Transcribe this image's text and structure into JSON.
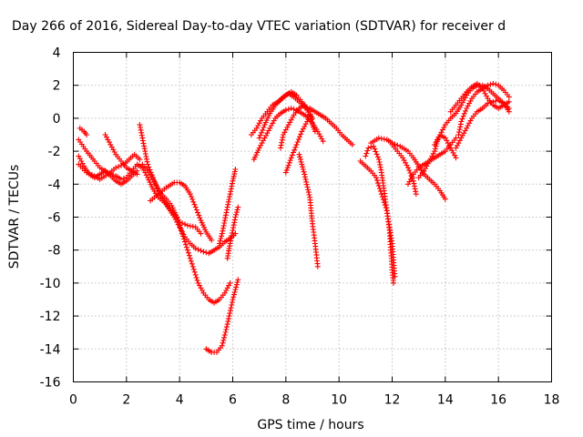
{
  "chart_data": {
    "type": "scatter",
    "title": "Day 266 of 2016, Sidereal Day-to-day VTEC variation (SDTVAR) for receiver d",
    "xlabel": "GPS time / hours",
    "ylabel": "SDTVAR / TECUs",
    "xlim": [
      0,
      18
    ],
    "ylim": [
      -16,
      4
    ],
    "xticks": [
      0,
      2,
      4,
      6,
      8,
      10,
      12,
      14,
      16,
      18
    ],
    "yticks": [
      4,
      2,
      0,
      -2,
      -4,
      -6,
      -8,
      -10,
      -12,
      -14,
      -16
    ],
    "grid": true,
    "marker": "plus",
    "color": "#ff0000",
    "series": [
      {
        "points": [
          [
            0.25,
            -0.6
          ],
          [
            0.4,
            -0.8
          ],
          [
            0.5,
            -1.0
          ]
        ]
      },
      {
        "points": [
          [
            0.2,
            -1.3
          ],
          [
            0.5,
            -2.0
          ],
          [
            0.8,
            -2.6
          ],
          [
            1.0,
            -3.0
          ],
          [
            1.3,
            -3.3
          ],
          [
            1.6,
            -3.5
          ],
          [
            1.8,
            -3.7
          ],
          [
            2.0,
            -3.6
          ],
          [
            2.2,
            -3.2
          ],
          [
            2.4,
            -2.8
          ],
          [
            2.6,
            -3.0
          ],
          [
            2.8,
            -3.6
          ],
          [
            3.0,
            -4.3
          ],
          [
            3.2,
            -4.8
          ],
          [
            3.5,
            -5.2
          ],
          [
            3.8,
            -5.8
          ],
          [
            4.0,
            -6.3
          ],
          [
            4.3,
            -6.5
          ],
          [
            4.6,
            -6.6
          ],
          [
            4.8,
            -7.0
          ]
        ]
      },
      {
        "points": [
          [
            0.2,
            -2.3
          ],
          [
            0.4,
            -2.9
          ],
          [
            0.6,
            -3.4
          ],
          [
            0.8,
            -3.6
          ],
          [
            1.0,
            -3.4
          ],
          [
            1.2,
            -3.2
          ],
          [
            1.4,
            -3.5
          ],
          [
            1.6,
            -3.8
          ],
          [
            1.8,
            -4.0
          ],
          [
            2.0,
            -3.8
          ],
          [
            2.2,
            -3.5
          ],
          [
            2.4,
            -3.2
          ]
        ]
      },
      {
        "points": [
          [
            0.2,
            -2.8
          ],
          [
            0.5,
            -3.3
          ],
          [
            0.8,
            -3.5
          ],
          [
            1.0,
            -3.7
          ],
          [
            1.3,
            -3.4
          ],
          [
            1.6,
            -3.0
          ],
          [
            1.9,
            -2.8
          ],
          [
            2.1,
            -2.5
          ],
          [
            2.3,
            -2.2
          ],
          [
            2.5,
            -2.5
          ]
        ]
      },
      {
        "points": [
          [
            1.2,
            -1.0
          ],
          [
            1.4,
            -1.6
          ],
          [
            1.6,
            -2.2
          ],
          [
            1.8,
            -2.6
          ],
          [
            2.0,
            -3.0
          ],
          [
            2.2,
            -3.2
          ],
          [
            2.4,
            -3.4
          ]
        ]
      },
      {
        "points": [
          [
            2.5,
            -0.4
          ],
          [
            2.6,
            -1.2
          ],
          [
            2.7,
            -2.0
          ],
          [
            2.8,
            -2.8
          ],
          [
            3.0,
            -3.6
          ],
          [
            3.2,
            -4.4
          ],
          [
            3.4,
            -5.0
          ],
          [
            3.6,
            -5.5
          ],
          [
            3.8,
            -6.0
          ],
          [
            4.0,
            -6.6
          ],
          [
            4.2,
            -7.2
          ],
          [
            4.4,
            -7.6
          ],
          [
            4.6,
            -7.9
          ],
          [
            4.9,
            -8.1
          ],
          [
            5.1,
            -8.2
          ],
          [
            5.3,
            -8.0
          ],
          [
            5.5,
            -7.8
          ],
          [
            5.7,
            -7.5
          ],
          [
            5.9,
            -7.3
          ],
          [
            6.1,
            -7.0
          ]
        ]
      },
      {
        "points": [
          [
            2.6,
            -2.8
          ],
          [
            2.9,
            -3.4
          ],
          [
            3.1,
            -4.0
          ],
          [
            3.3,
            -4.6
          ],
          [
            3.5,
            -4.9
          ],
          [
            3.7,
            -5.3
          ],
          [
            3.9,
            -6.0
          ],
          [
            4.1,
            -7.0
          ],
          [
            4.3,
            -8.0
          ],
          [
            4.5,
            -9.0
          ],
          [
            4.7,
            -10.0
          ],
          [
            4.9,
            -10.6
          ],
          [
            5.1,
            -11.0
          ],
          [
            5.3,
            -11.2
          ],
          [
            5.5,
            -11.0
          ],
          [
            5.7,
            -10.6
          ],
          [
            5.9,
            -10.0
          ]
        ]
      },
      {
        "points": [
          [
            2.9,
            -5.0
          ],
          [
            3.2,
            -4.6
          ],
          [
            3.5,
            -4.2
          ],
          [
            3.8,
            -3.9
          ],
          [
            4.0,
            -3.9
          ],
          [
            4.2,
            -4.1
          ],
          [
            4.4,
            -4.6
          ],
          [
            4.6,
            -5.4
          ],
          [
            4.8,
            -6.2
          ],
          [
            5.0,
            -6.9
          ],
          [
            5.2,
            -7.4
          ]
        ]
      },
      {
        "points": [
          [
            5.0,
            -14.0
          ],
          [
            5.2,
            -14.2
          ],
          [
            5.4,
            -14.2
          ],
          [
            5.6,
            -13.8
          ],
          [
            5.8,
            -12.5
          ],
          [
            6.0,
            -11.0
          ],
          [
            6.2,
            -9.8
          ]
        ]
      },
      {
        "points": [
          [
            5.5,
            -7.6
          ],
          [
            5.6,
            -7.0
          ],
          [
            5.7,
            -6.2
          ],
          [
            5.8,
            -5.4
          ],
          [
            5.9,
            -4.6
          ],
          [
            6.0,
            -3.8
          ],
          [
            6.1,
            -3.1
          ]
        ]
      },
      {
        "points": [
          [
            5.8,
            -8.5
          ],
          [
            5.9,
            -7.6
          ],
          [
            6.0,
            -6.8
          ],
          [
            6.1,
            -6.0
          ],
          [
            6.2,
            -5.4
          ]
        ]
      },
      {
        "points": [
          [
            6.7,
            -1.0
          ],
          [
            6.9,
            -0.6
          ],
          [
            7.1,
            0.0
          ],
          [
            7.3,
            0.4
          ],
          [
            7.5,
            0.8
          ],
          [
            7.7,
            1.0
          ],
          [
            7.9,
            1.3
          ],
          [
            8.1,
            1.5
          ],
          [
            8.3,
            1.3
          ],
          [
            8.5,
            1.0
          ],
          [
            8.7,
            0.7
          ],
          [
            8.9,
            0.6
          ],
          [
            9.1,
            0.4
          ],
          [
            9.3,
            0.2
          ],
          [
            9.5,
            0.0
          ],
          [
            9.7,
            -0.3
          ],
          [
            9.9,
            -0.6
          ],
          [
            10.1,
            -1.0
          ],
          [
            10.3,
            -1.3
          ],
          [
            10.5,
            -1.6
          ]
        ]
      },
      {
        "points": [
          [
            6.8,
            -2.5
          ],
          [
            7.0,
            -1.8
          ],
          [
            7.2,
            -1.2
          ],
          [
            7.4,
            -0.6
          ],
          [
            7.6,
            0.0
          ],
          [
            7.8,
            0.3
          ],
          [
            8.0,
            0.5
          ],
          [
            8.2,
            0.6
          ],
          [
            8.4,
            0.5
          ],
          [
            8.6,
            0.3
          ],
          [
            8.8,
            0.1
          ],
          [
            9.0,
            -0.3
          ],
          [
            9.2,
            -0.8
          ],
          [
            9.4,
            -1.4
          ]
        ]
      },
      {
        "points": [
          [
            7.0,
            -1.2
          ],
          [
            7.2,
            -0.4
          ],
          [
            7.4,
            0.3
          ],
          [
            7.6,
            0.8
          ],
          [
            7.8,
            1.1
          ],
          [
            8.0,
            1.4
          ],
          [
            8.2,
            1.6
          ],
          [
            8.4,
            1.4
          ],
          [
            8.6,
            1.0
          ],
          [
            8.8,
            0.5
          ],
          [
            9.0,
            0.0
          ]
        ]
      },
      {
        "points": [
          [
            7.8,
            -1.8
          ],
          [
            7.9,
            -1.0
          ],
          [
            8.1,
            -0.4
          ],
          [
            8.3,
            0.2
          ],
          [
            8.5,
            0.6
          ],
          [
            8.7,
            0.8
          ],
          [
            8.9,
            0.4
          ],
          [
            9.0,
            -0.4
          ],
          [
            9.1,
            -0.8
          ]
        ]
      },
      {
        "points": [
          [
            8.0,
            -3.3
          ],
          [
            8.2,
            -2.4
          ],
          [
            8.4,
            -1.6
          ],
          [
            8.6,
            -0.8
          ],
          [
            8.8,
            -0.2
          ],
          [
            8.9,
            0.2
          ]
        ]
      },
      {
        "points": [
          [
            8.5,
            -2.2
          ],
          [
            8.7,
            -3.4
          ],
          [
            8.9,
            -4.8
          ],
          [
            9.0,
            -6.4
          ],
          [
            9.1,
            -7.6
          ],
          [
            9.2,
            -9.0
          ]
        ]
      },
      {
        "points": [
          [
            10.8,
            -2.6
          ],
          [
            11.0,
            -2.9
          ],
          [
            11.2,
            -3.2
          ],
          [
            11.4,
            -3.6
          ],
          [
            11.6,
            -4.6
          ],
          [
            11.8,
            -5.6
          ],
          [
            11.9,
            -6.6
          ],
          [
            12.0,
            -7.6
          ],
          [
            12.05,
            -8.6
          ],
          [
            12.1,
            -9.6
          ]
        ]
      },
      {
        "points": [
          [
            11.0,
            -2.3
          ],
          [
            11.1,
            -1.8
          ],
          [
            11.3,
            -1.7
          ],
          [
            11.5,
            -2.5
          ],
          [
            11.6,
            -3.3
          ],
          [
            11.7,
            -4.4
          ],
          [
            11.8,
            -5.6
          ],
          [
            11.9,
            -6.8
          ],
          [
            11.95,
            -8.0
          ],
          [
            12.0,
            -9.2
          ],
          [
            12.05,
            -10.0
          ]
        ]
      },
      {
        "points": [
          [
            11.2,
            -1.5
          ],
          [
            11.5,
            -1.2
          ],
          [
            11.8,
            -1.3
          ],
          [
            12.0,
            -1.5
          ],
          [
            12.3,
            -1.7
          ],
          [
            12.6,
            -2.0
          ],
          [
            12.8,
            -2.4
          ],
          [
            13.0,
            -2.9
          ],
          [
            13.2,
            -3.4
          ],
          [
            13.4,
            -3.7
          ],
          [
            13.6,
            -4.0
          ],
          [
            13.8,
            -4.4
          ],
          [
            14.0,
            -4.9
          ]
        ]
      },
      {
        "points": [
          [
            12.0,
            -1.6
          ],
          [
            12.2,
            -2.0
          ],
          [
            12.4,
            -2.4
          ],
          [
            12.6,
            -3.0
          ],
          [
            12.8,
            -3.8
          ],
          [
            12.9,
            -4.6
          ]
        ]
      },
      {
        "points": [
          [
            12.6,
            -4.0
          ],
          [
            12.8,
            -3.4
          ],
          [
            13.0,
            -3.0
          ],
          [
            13.2,
            -2.8
          ],
          [
            13.4,
            -2.6
          ],
          [
            13.6,
            -2.4
          ],
          [
            13.8,
            -2.2
          ],
          [
            14.0,
            -2.0
          ],
          [
            14.2,
            -1.6
          ],
          [
            14.4,
            -1.2
          ]
        ]
      },
      {
        "points": [
          [
            13.0,
            -3.6
          ],
          [
            13.2,
            -3.2
          ],
          [
            13.4,
            -2.6
          ],
          [
            13.6,
            -2.0
          ],
          [
            13.7,
            -1.4
          ],
          [
            13.8,
            -1.0
          ],
          [
            14.0,
            -1.2
          ],
          [
            14.2,
            -1.8
          ],
          [
            14.4,
            -2.4
          ]
        ]
      },
      {
        "points": [
          [
            13.6,
            -1.6
          ],
          [
            13.8,
            -1.0
          ],
          [
            14.0,
            -0.4
          ],
          [
            14.2,
            0.0
          ],
          [
            14.4,
            0.3
          ],
          [
            14.6,
            0.8
          ],
          [
            14.8,
            1.4
          ],
          [
            15.0,
            1.8
          ],
          [
            15.2,
            2.0
          ],
          [
            15.4,
            2.0
          ],
          [
            15.6,
            1.8
          ],
          [
            15.8,
            1.5
          ],
          [
            16.0,
            1.2
          ],
          [
            16.2,
            0.9
          ],
          [
            16.4,
            0.4
          ]
        ]
      },
      {
        "points": [
          [
            14.5,
            -1.0
          ],
          [
            14.6,
            -0.2
          ],
          [
            14.8,
            0.6
          ],
          [
            15.0,
            1.2
          ],
          [
            15.2,
            1.6
          ],
          [
            15.4,
            1.8
          ],
          [
            15.6,
            2.0
          ],
          [
            15.8,
            2.1
          ],
          [
            16.0,
            2.0
          ],
          [
            16.2,
            1.7
          ],
          [
            16.4,
            1.3
          ]
        ]
      },
      {
        "points": [
          [
            14.4,
            -1.8
          ],
          [
            14.6,
            -1.2
          ],
          [
            14.8,
            -0.6
          ],
          [
            15.0,
            0.0
          ],
          [
            15.2,
            0.4
          ],
          [
            15.4,
            0.6
          ],
          [
            15.6,
            0.9
          ],
          [
            15.8,
            1.0
          ],
          [
            16.0,
            1.1
          ],
          [
            16.2,
            0.9
          ],
          [
            16.4,
            0.6
          ]
        ]
      },
      {
        "points": [
          [
            14.2,
            0.4
          ],
          [
            14.4,
            0.8
          ],
          [
            14.6,
            1.2
          ],
          [
            14.8,
            1.6
          ],
          [
            15.0,
            1.9
          ],
          [
            15.2,
            2.1
          ],
          [
            15.4,
            1.8
          ],
          [
            15.6,
            1.2
          ],
          [
            15.8,
            0.8
          ],
          [
            16.0,
            0.6
          ],
          [
            16.2,
            0.8
          ],
          [
            16.4,
            1.0
          ]
        ]
      }
    ]
  }
}
